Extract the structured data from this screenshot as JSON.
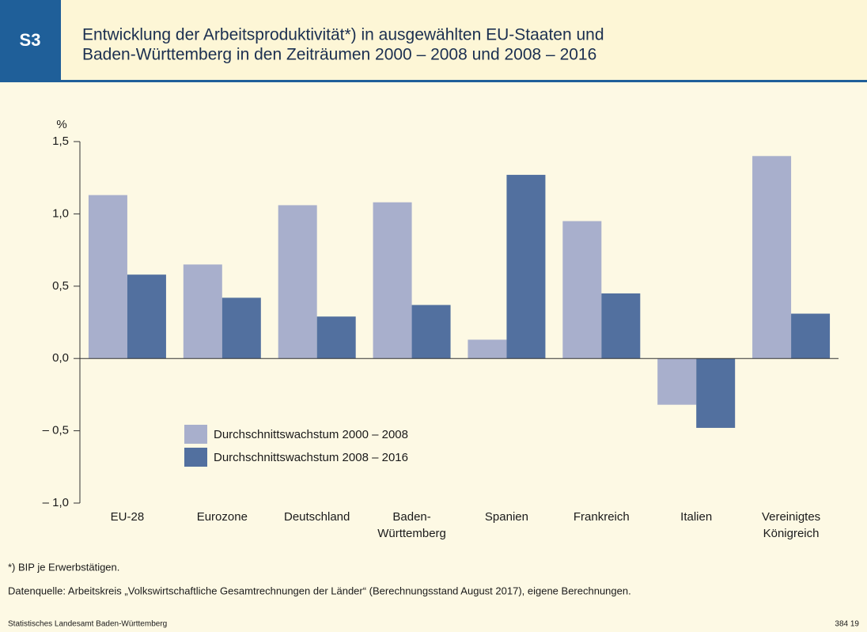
{
  "badge": "S3",
  "chart_data": {
    "type": "bar",
    "title": [
      "Entwicklung der Arbeitsproduktivität*) in ausgewählten EU-Staaten und",
      "Baden-Württemberg in den Zeiträumen 2000 – 2008 und 2008 – 2016"
    ],
    "y_label": "%",
    "categories": [
      "EU-28",
      "Eurozone",
      "Deutschland",
      "Baden-\nWürttemberg",
      "Spanien",
      "Frankreich",
      "Italien",
      "Vereinigtes\nKönigreich"
    ],
    "series": [
      {
        "name": "Durchschnittswachstum 2000 – 2008",
        "color": "#a8afcc",
        "values": [
          1.13,
          0.65,
          1.06,
          1.08,
          0.13,
          0.95,
          -0.32,
          1.4
        ]
      },
      {
        "name": "Durchschnittswachstum 2008 – 2016",
        "color": "#52709f",
        "values": [
          0.58,
          0.42,
          0.29,
          0.37,
          1.27,
          0.45,
          -0.48,
          0.31
        ]
      }
    ],
    "ylim": [
      -1.0,
      1.5
    ],
    "yticks": [
      {
        "value": 1.5,
        "label": "1,5"
      },
      {
        "value": 1.0,
        "label": "1,0"
      },
      {
        "value": 0.5,
        "label": "0,5"
      },
      {
        "value": 0.0,
        "label": "0,0"
      },
      {
        "value": -0.5,
        "label": "– 0,5"
      },
      {
        "value": -1.0,
        "label": "– 1,0"
      }
    ],
    "legend": "center-left"
  },
  "footnote": "*) BIP je Erwerbstätigen.",
  "source": "Datenquelle: Arbeitskreis „Volkswirtschaftliche Gesamtrechnungen der Länder“ (Berechnungsstand August 2017), eigene Berechnungen.",
  "footer": {
    "left": "Statistisches Landesamt Baden-Württemberg",
    "right": "384 19"
  }
}
